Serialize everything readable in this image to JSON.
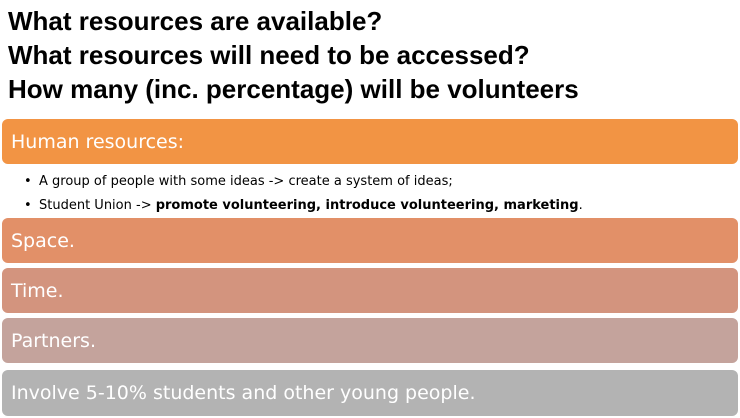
{
  "questions": [
    "What resources are available?",
    "What resources will need to be accessed?",
    "How many (inc. percentage) will be volunteers"
  ],
  "sections": {
    "human_resources": "Human resources:",
    "space": "Space.",
    "time": "Time.",
    "partners": "Partners.",
    "involve": "Involve 5-10% students and other young people."
  },
  "bullets": {
    "bullet_glyph": "•",
    "item1": "A group of people with some ideas -> create a system of ideas;",
    "item2_prefix": "Student Union -> ",
    "item2_bold": "promote volunteering, introduce volunteering, marketing",
    "item2_suffix": "."
  },
  "colors": {
    "human_resources": "#f29444",
    "space": "#e29068",
    "time": "#d3947e",
    "partners": "#c4a39c",
    "involve": "#b3b3b3"
  }
}
